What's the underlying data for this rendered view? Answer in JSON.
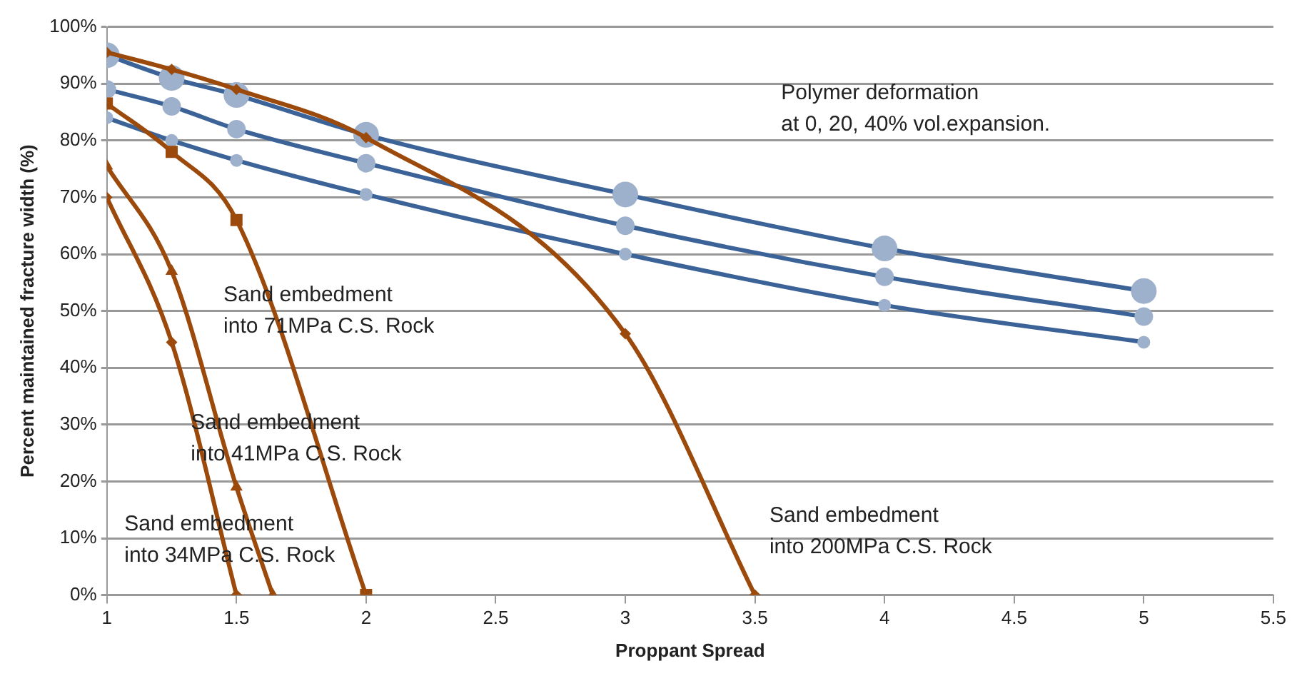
{
  "chart_data": {
    "type": "line",
    "xlabel": "Proppant Spread",
    "ylabel": "Percent maintained fracture width (%)",
    "xlim": [
      1,
      5.5
    ],
    "xticks": [
      1,
      1.5,
      2,
      2.5,
      3,
      3.5,
      4,
      4.5,
      5,
      5.5
    ],
    "ylim": [
      0,
      100
    ],
    "yticks": [
      {
        "value": 0,
        "label": "0%"
      },
      {
        "value": 10,
        "label": "10%"
      },
      {
        "value": 20,
        "label": "20%"
      },
      {
        "value": 30,
        "label": "30%"
      },
      {
        "value": 40,
        "label": "40%"
      },
      {
        "value": 50,
        "label": "50%"
      },
      {
        "value": 60,
        "label": "60%"
      },
      {
        "value": 70,
        "label": "70%"
      },
      {
        "value": 80,
        "label": "80%"
      },
      {
        "value": 90,
        "label": "90%"
      },
      {
        "value": 100,
        "label": "100%"
      }
    ],
    "grid": "y",
    "legend": false,
    "series": [
      {
        "color": "#3c6398",
        "marker": "circle",
        "x": [
          1,
          1.25,
          1.5,
          2,
          3,
          4,
          5
        ],
        "values": [
          95,
          91,
          88,
          81,
          70.5,
          61,
          53.5
        ]
      },
      {
        "color": "#3c6398",
        "marker": "circle",
        "x": [
          1,
          1.25,
          1.5,
          2,
          3,
          4,
          5
        ],
        "values": [
          89,
          86,
          82,
          76,
          65,
          56,
          49
        ]
      },
      {
        "color": "#3c6398",
        "marker": "circle",
        "x": [
          1,
          1.25,
          1.5,
          2,
          3,
          4,
          5
        ],
        "values": [
          84,
          80,
          76.5,
          70.5,
          60,
          51,
          44.5
        ]
      },
      {
        "color": "#9c4a0c",
        "marker": "diamond",
        "x": [
          1,
          1.25,
          1.5,
          2,
          3,
          3.5
        ],
        "values": [
          95.5,
          92.5,
          89,
          80.5,
          46,
          0
        ]
      },
      {
        "color": "#9c4a0c",
        "marker": "square",
        "x": [
          1,
          1.25,
          1.5,
          2
        ],
        "values": [
          86.5,
          78,
          66,
          0
        ]
      },
      {
        "color": "#9c4a0c",
        "marker": "triangle",
        "x": [
          1,
          1.25,
          1.5,
          1.64
        ],
        "values": [
          75.5,
          57,
          19,
          0
        ]
      },
      {
        "color": "#9c4a0c",
        "marker": "diamond",
        "x": [
          1,
          1.25,
          1.5
        ],
        "values": [
          70,
          44.5,
          0
        ]
      }
    ],
    "annotations": [
      "Polymer deformation\nat 0, 20, 40% vol.expansion.",
      "Sand embedment\ninto 71MPa C.S. Rock",
      "Sand embedment\ninto 41MPa C.S. Rock",
      "Sand embedment\ninto 34MPa C.S. Rock",
      "Sand embedment\ninto 200MPa C.S. Rock"
    ]
  }
}
